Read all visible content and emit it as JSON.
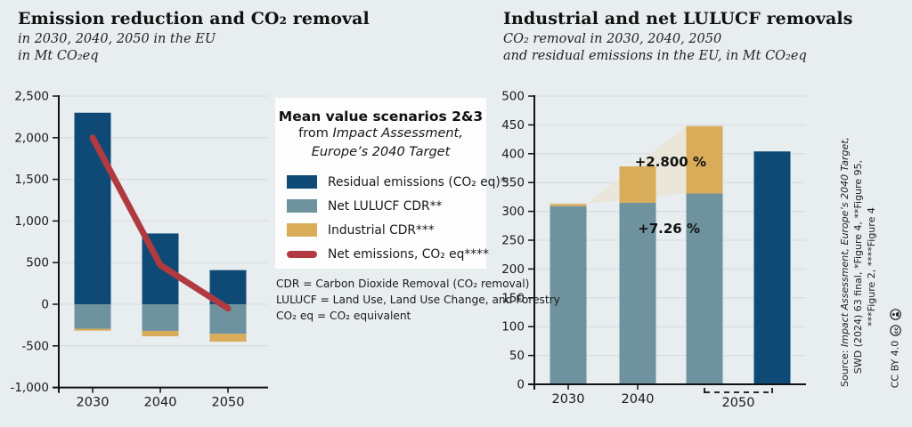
{
  "page": {
    "background": "#e8edf0",
    "text_color": "#1a1a1a"
  },
  "colors": {
    "residual_blue": "#0f4a76",
    "lulucf_teal": "#6e939e",
    "industrial_gold": "#d9ac59",
    "net_red": "#b03a40",
    "fan_beige": "#e9e5d7",
    "gridline": "#d3dbdf",
    "axis": "#111111",
    "legend_bg": "#fdfdfd"
  },
  "legend": {
    "title": "Mean value scenarios 2&3",
    "line2_prefix": "from ",
    "line2_italic": "Impact Assessment,",
    "line3_italic": "Europe’s 2040 Target",
    "items": [
      {
        "label": "Residual emissions (CO₂ eq)*",
        "color": "#0f4a76",
        "shape": "rect"
      },
      {
        "label": "Net LULUCF CDR**",
        "color": "#6e939e",
        "shape": "rect"
      },
      {
        "label": "Industrial CDR***",
        "color": "#d9ac59",
        "shape": "rect"
      },
      {
        "label": "Net emissions, CO₂ eq****",
        "color": "#b03a40",
        "shape": "line"
      }
    ]
  },
  "footnotes": [
    "CDR = Carbon Dioxide Removal (CO₂ removal)",
    "LULUCF = Land Use, Land Use Change, and Forestry",
    "CO₂ eq = CO₂ equivalent"
  ],
  "source": {
    "line1_prefix": "Source: ",
    "line1_italic": "Impact Assessment, Europe’s 2040 Target,",
    "line2": "SWD (2024) 63 final, *Figure 4, **Figure 95,",
    "line3": "***Figure 2, ****Figure 4",
    "license": "CC BY 4.0"
  },
  "chart_data": [
    {
      "type": "bar",
      "title": "Emission reduction and CO₂ removal",
      "subtitle": [
        "in 2030, 2040, 2050 in the EU",
        "in Mt CO₂eq"
      ],
      "categories": [
        "2030",
        "2040",
        "2050"
      ],
      "ylim": [
        -1000,
        2500
      ],
      "ytick_step": 500,
      "grid": true,
      "ylabel": "Mt CO₂eq",
      "series": [
        {
          "name": "Residual emissions (CO₂ eq)*",
          "type": "bar",
          "color": "#0f4a76",
          "values": [
            2300,
            850,
            410
          ]
        },
        {
          "name": "Net LULUCF CDR**",
          "type": "bar",
          "color": "#6e939e",
          "values": [
            -295,
            -320,
            -355
          ]
        },
        {
          "name": "Industrial CDR***",
          "type": "bar",
          "stack_on": 1,
          "color": "#d9ac59",
          "values": [
            -22,
            -65,
            -95
          ]
        },
        {
          "name": "Net emissions, CO₂ eq****",
          "type": "line",
          "color": "#b03a40",
          "values": [
            2000,
            470,
            -50
          ]
        }
      ]
    },
    {
      "type": "bar",
      "title": "Industrial and net LULUCF removals",
      "subtitle": [
        "CO₂ removal in 2030, 2040, 2050",
        "and residual emissions in the EU, in Mt CO₂eq"
      ],
      "categories": [
        "2030",
        "2040",
        "2050"
      ],
      "ylim": [
        0,
        500
      ],
      "ytick_step": 50,
      "grid": true,
      "ylabel": "Mt CO₂eq",
      "series": [
        {
          "name": "Net LULUCF CDR",
          "type": "bar",
          "color": "#6e939e",
          "values": [
            309,
            315,
            331
          ]
        },
        {
          "name": "Industrial CDR",
          "type": "bar",
          "stack_on": 0,
          "color": "#d9ac59",
          "values": [
            4,
            63,
            117
          ]
        },
        {
          "name": "Residual emissions (CO₂ eq)",
          "type": "bar",
          "offset_group": true,
          "color": "#0f4a76",
          "values": [
            null,
            null,
            404
          ]
        }
      ],
      "annotations": [
        {
          "series": "Industrial CDR",
          "text": "+2.800 %"
        },
        {
          "series": "Net LULUCF CDR",
          "text": "+7.26 %"
        }
      ],
      "fan": {
        "color": "#e9e5d7",
        "from_category": 0,
        "to_category": 2
      }
    }
  ]
}
